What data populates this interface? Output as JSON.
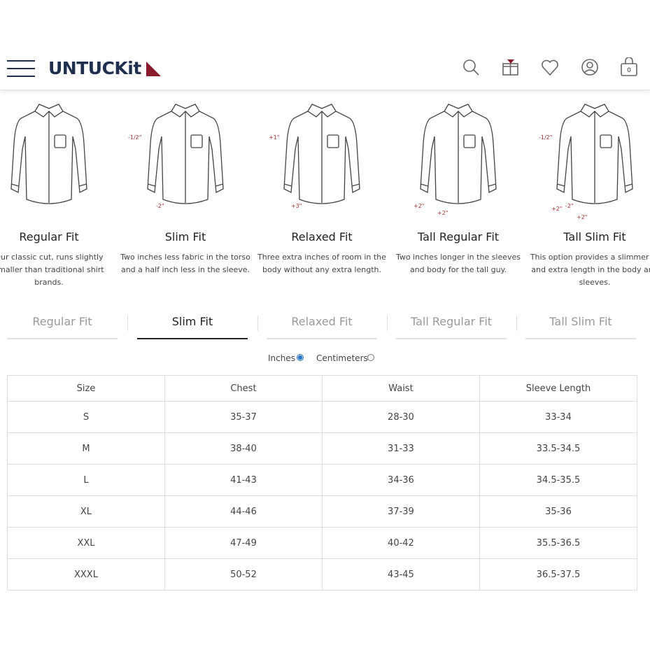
{
  "header": {
    "logo": "UNTUCKit",
    "cart_count": "0"
  },
  "fits": [
    {
      "name": "Regular Fit",
      "description": "Our classic cut, runs slightly smaller than traditional shirt brands.",
      "annotations": []
    },
    {
      "name": "Slim Fit",
      "description": "Two inches less fabric in the torso and a half inch less in the sleeve.",
      "annotations": [
        "-1/2\"",
        "-2\""
      ]
    },
    {
      "name": "Relaxed Fit",
      "description": "Three extra inches of room in the body without any extra length.",
      "annotations": [
        "+1\"",
        "+3\""
      ]
    },
    {
      "name": "Tall Regular Fit",
      "description": "Two inches longer in the sleeves and body for the tall guy.",
      "annotations": [
        "+2\"",
        "+2\""
      ]
    },
    {
      "name": "Tall Slim Fit",
      "description": "This option provides a slimmer fit and extra length in the body and sleeves.",
      "annotations": [
        "-1/2\"",
        "+2\"",
        "-2\"",
        "+2\""
      ]
    }
  ],
  "tabs": {
    "labels": [
      "Regular Fit",
      "Slim Fit",
      "Relaxed Fit",
      "Tall Regular Fit",
      "Tall Slim Fit"
    ],
    "active": 1
  },
  "units": [
    {
      "label": "Inches",
      "selected": true
    },
    {
      "label": "Centimeters",
      "selected": false
    }
  ],
  "table": {
    "headers": [
      "Size",
      "Chest",
      "Waist",
      "Sleeve Length"
    ],
    "rows": [
      [
        "S",
        "35-37",
        "28-30",
        "33-34"
      ],
      [
        "M",
        "38-40",
        "31-33",
        "33.5-34.5"
      ],
      [
        "L",
        "41-43",
        "34-36",
        "34.5-35.5"
      ],
      [
        "XL",
        "44-46",
        "37-39",
        "35-36"
      ],
      [
        "XXL",
        "47-49",
        "40-42",
        "35.5-36.5"
      ],
      [
        "XXXL",
        "50-52",
        "43-45",
        "36.5-37.5"
      ]
    ]
  }
}
